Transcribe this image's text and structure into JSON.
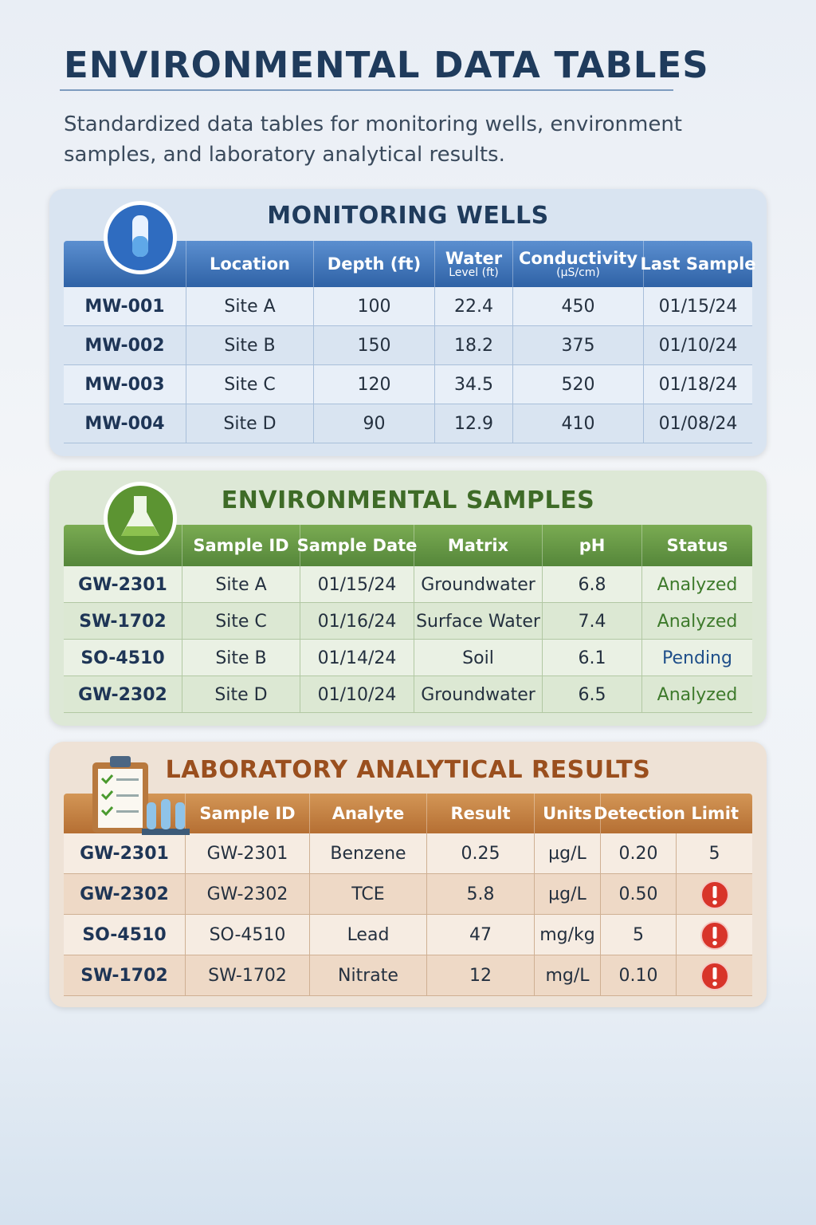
{
  "header": {
    "title": "ENVIRONMENTAL DATA TABLES",
    "subtitle": "Standardized data tables for monitoring wells, environment samples, and laboratory analytical results."
  },
  "sections": [
    {
      "title": "MONITORING WELLS",
      "headers": [
        {
          "text": "Location"
        },
        {
          "text": "Depth (ft)"
        },
        {
          "text": "Water",
          "sub": "Level (ft)"
        },
        {
          "text": "Conductivity",
          "sub": "(µS/cm)"
        },
        {
          "text": "Last Sample"
        }
      ],
      "rows": [
        [
          "MW-001",
          "Site A",
          "100",
          "22.4",
          "450",
          "01/15/24"
        ],
        [
          "MW-002",
          "Site B",
          "150",
          "18.2",
          "375",
          "01/10/24"
        ],
        [
          "MW-003",
          "Site C",
          "120",
          "34.5",
          "520",
          "01/18/24"
        ],
        [
          "MW-004",
          "Site D",
          "90",
          "12.9",
          "410",
          "01/08/24"
        ]
      ]
    },
    {
      "title": "ENVIRONMENTAL SAMPLES",
      "headers": [
        {
          "text": "Sample ID"
        },
        {
          "text": "Sample Date"
        },
        {
          "text": "Matrix"
        },
        {
          "text": "pH"
        },
        {
          "text": "Status"
        }
      ],
      "rows": [
        [
          "GW-2301",
          "Site A",
          "01/15/24",
          "Groundwater",
          "6.8",
          "Analyzed"
        ],
        [
          "SW-1702",
          "Site C",
          "01/16/24",
          "Surface Water",
          "7.4",
          "Analyzed"
        ],
        [
          "SO-4510",
          "Site B",
          "01/14/24",
          "Soil",
          "6.1",
          "Pending"
        ],
        [
          "GW-2302",
          "Site D",
          "01/10/24",
          "Groundwater",
          "6.5",
          "Analyzed"
        ]
      ],
      "status_colors": [
        "#3d7a2b",
        "#3d7a2b",
        "#1f4f8a",
        "#3d7a2b"
      ]
    },
    {
      "title": "LABORATORY ANALYTICAL RESULTS",
      "headers": [
        {
          "text": "Sample ID"
        },
        {
          "text": "Analyte"
        },
        {
          "text": "Result"
        },
        {
          "text": "Units"
        },
        {
          "text": "Detection Limit"
        }
      ],
      "rows": [
        [
          "GW-2301",
          "GW-2301",
          "Benzene",
          "0.25",
          "µg/L",
          "0.20",
          "5"
        ],
        [
          "GW-2302",
          "GW-2302",
          "TCE",
          "5.8",
          "µg/L",
          "0.50"
        ],
        [
          "SO-4510",
          "SO-4510",
          "Lead",
          "47",
          "mg/kg",
          "5"
        ],
        [
          "SW-1702",
          "SW-1702",
          "Nitrate",
          "12",
          "mg/L",
          "0.10"
        ]
      ],
      "alerts": [
        false,
        true,
        true,
        true
      ]
    }
  ]
}
